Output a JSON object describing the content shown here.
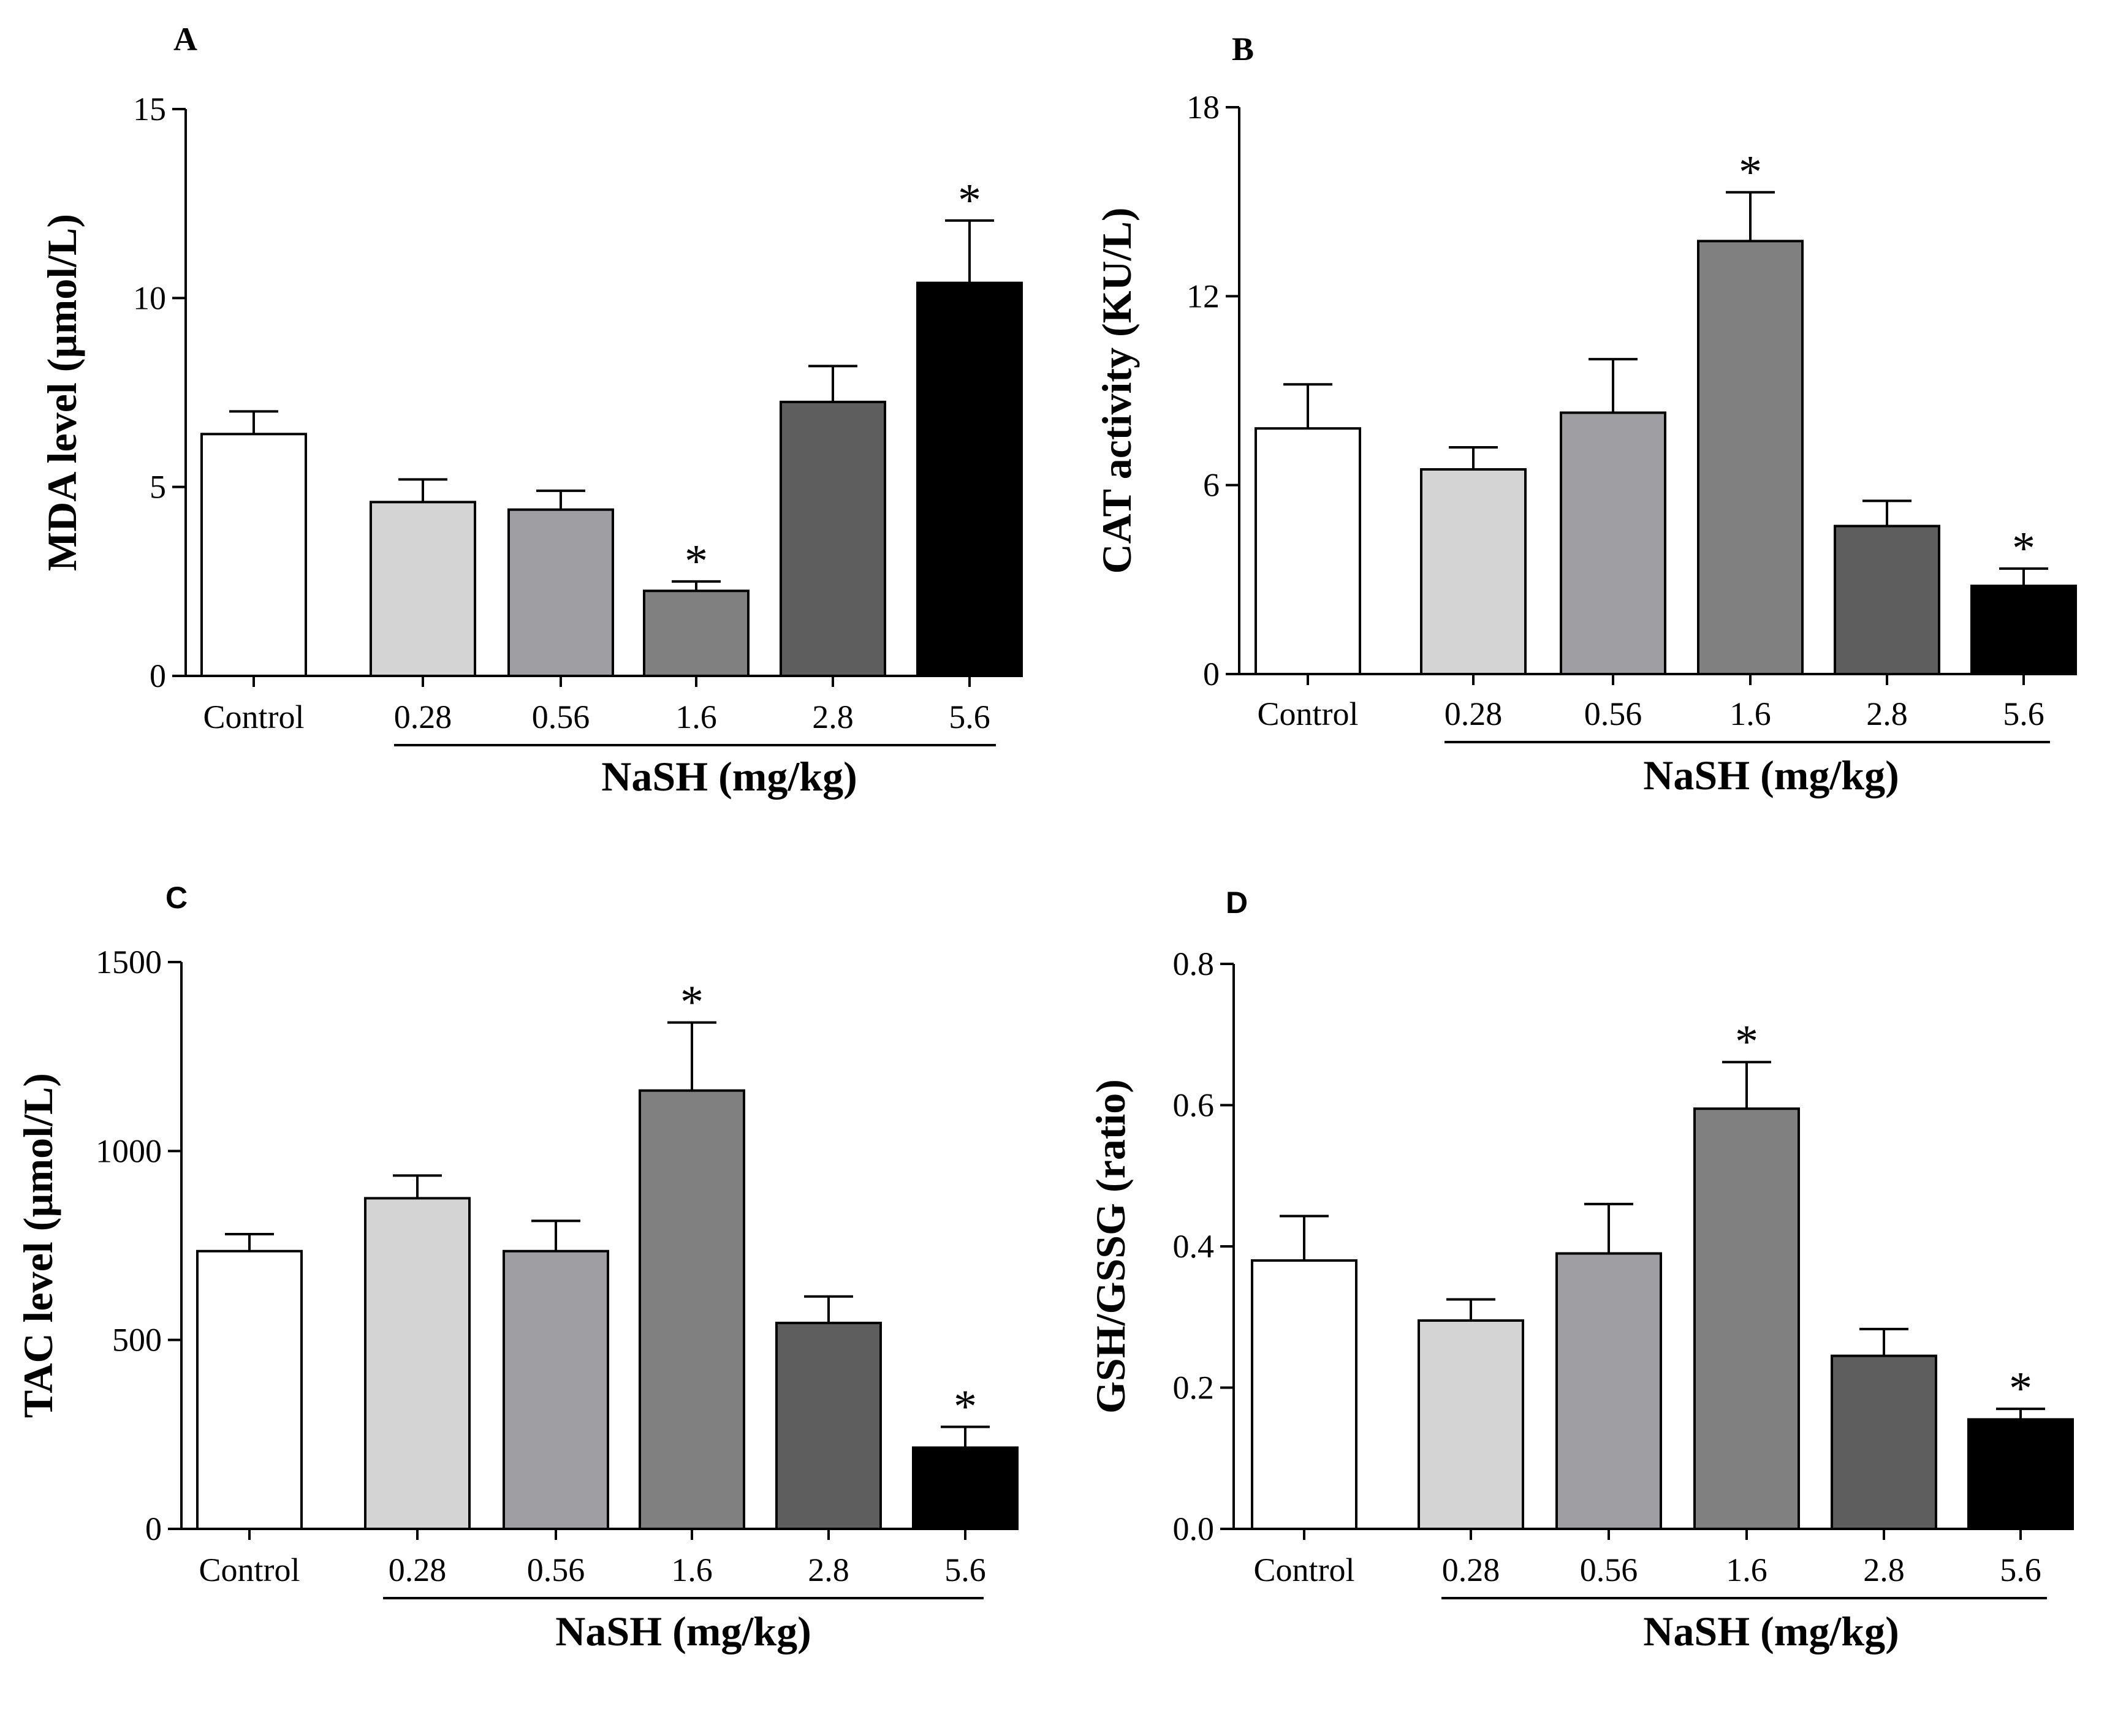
{
  "figure": {
    "panels": [
      "A",
      "B",
      "C",
      "D"
    ],
    "bar_colors": [
      "#ffffff",
      "#d4d4d4",
      "#9e9ea3",
      "#808080",
      "#5e5e5e",
      "#000000"
    ]
  },
  "chart_data": [
    {
      "panel": "A",
      "type": "bar",
      "categories": [
        "Control",
        "0.28",
        "0.56",
        "1.6",
        "2.8",
        "5.6"
      ],
      "values": [
        6.4,
        4.6,
        4.4,
        2.25,
        7.25,
        10.4
      ],
      "errors": [
        0.6,
        0.6,
        0.5,
        0.25,
        0.95,
        1.65
      ],
      "significant": [
        false,
        false,
        false,
        true,
        false,
        true
      ],
      "sig_marker": "*",
      "ylabel": "MDA level (µmol/L)",
      "xlabel": "NaSH (mg/kg)",
      "ylim": [
        0,
        15
      ],
      "yticks": [
        "0",
        "5",
        "10",
        "15"
      ]
    },
    {
      "panel": "B",
      "type": "bar",
      "categories": [
        "Control",
        "0.28",
        "0.56",
        "1.6",
        "2.8",
        "5.6"
      ],
      "values": [
        7.8,
        6.5,
        8.3,
        13.75,
        4.7,
        2.8
      ],
      "errors": [
        1.4,
        0.7,
        1.7,
        1.55,
        0.8,
        0.55
      ],
      "significant": [
        false,
        false,
        false,
        true,
        false,
        true
      ],
      "sig_marker": "*",
      "ylabel": "CAT activity (KU/L)",
      "xlabel": "NaSH (mg/kg)",
      "ylim": [
        0,
        18
      ],
      "yticks": [
        "0",
        "6",
        "12",
        "18"
      ]
    },
    {
      "panel": "C",
      "type": "bar",
      "categories": [
        "Control",
        "0.28",
        "0.56",
        "1.6",
        "2.8",
        "5.6"
      ],
      "values": [
        735,
        875,
        735,
        1160,
        545,
        215
      ],
      "errors": [
        45,
        60,
        80,
        180,
        70,
        55
      ],
      "significant": [
        false,
        false,
        false,
        true,
        false,
        true
      ],
      "sig_marker": "*",
      "ylabel": "TAC level (µmol/L)",
      "xlabel": "NaSH (mg/kg)",
      "ylim": [
        0,
        1500
      ],
      "yticks": [
        "0",
        "500",
        "1000",
        "1500"
      ]
    },
    {
      "panel": "D",
      "type": "bar",
      "categories": [
        "Control",
        "0.28",
        "0.56",
        "1.6",
        "2.8",
        "5.6"
      ],
      "values": [
        0.38,
        0.295,
        0.39,
        0.595,
        0.245,
        0.155
      ],
      "errors": [
        0.063,
        0.03,
        0.07,
        0.066,
        0.038,
        0.015
      ],
      "significant": [
        false,
        false,
        false,
        true,
        false,
        true
      ],
      "sig_marker": "*",
      "ylabel": "GSH/GSSG (ratio)",
      "xlabel": "NaSH (mg/kg)",
      "ylim": [
        0,
        0.8
      ],
      "yticks": [
        "0.0",
        "0.2",
        "0.4",
        "0.6",
        "0.8"
      ]
    }
  ]
}
